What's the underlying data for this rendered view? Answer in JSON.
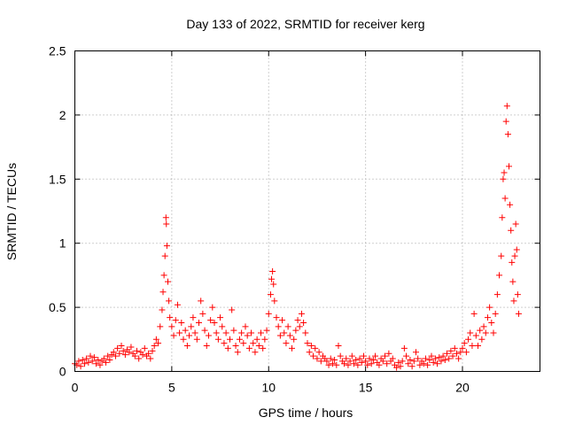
{
  "chart_data": {
    "type": "scatter",
    "title": "Day 133 of 2022, SRMTID for receiver kerg",
    "xlabel": "GPS time / hours",
    "ylabel": "SRMTID / TECUs",
    "xlim": [
      0,
      24
    ],
    "ylim": [
      0,
      2.5
    ],
    "x_ticks": [
      0,
      5,
      10,
      15,
      20
    ],
    "x_tick_labels": [
      "0",
      "5",
      "10",
      "15",
      "20"
    ],
    "y_ticks": [
      0,
      0.5,
      1,
      1.5,
      2,
      2.5
    ],
    "y_tick_labels": [
      "0",
      "0.5",
      "1",
      "1.5",
      "2",
      "2.5"
    ],
    "grid": true,
    "marker": "+",
    "series": [
      {
        "name": "SRMTID",
        "color": "#ff0000",
        "points": [
          [
            0.0,
            0.06
          ],
          [
            0.1,
            0.05
          ],
          [
            0.2,
            0.08
          ],
          [
            0.3,
            0.04
          ],
          [
            0.4,
            0.09
          ],
          [
            0.5,
            0.06
          ],
          [
            0.6,
            0.1
          ],
          [
            0.7,
            0.07
          ],
          [
            0.8,
            0.12
          ],
          [
            0.9,
            0.08
          ],
          [
            1.0,
            0.11
          ],
          [
            1.1,
            0.06
          ],
          [
            1.2,
            0.09
          ],
          [
            1.3,
            0.05
          ],
          [
            1.4,
            0.08
          ],
          [
            1.5,
            0.1
          ],
          [
            1.6,
            0.07
          ],
          [
            1.7,
            0.12
          ],
          [
            1.8,
            0.09
          ],
          [
            1.9,
            0.13
          ],
          [
            2.0,
            0.15
          ],
          [
            2.1,
            0.12
          ],
          [
            2.2,
            0.18
          ],
          [
            2.3,
            0.14
          ],
          [
            2.4,
            0.2
          ],
          [
            2.5,
            0.16
          ],
          [
            2.6,
            0.13
          ],
          [
            2.7,
            0.17
          ],
          [
            2.8,
            0.15
          ],
          [
            2.9,
            0.19
          ],
          [
            3.0,
            0.14
          ],
          [
            3.1,
            0.12
          ],
          [
            3.2,
            0.16
          ],
          [
            3.3,
            0.1
          ],
          [
            3.4,
            0.15
          ],
          [
            3.5,
            0.13
          ],
          [
            3.6,
            0.18
          ],
          [
            3.7,
            0.12
          ],
          [
            3.8,
            0.14
          ],
          [
            3.9,
            0.1
          ],
          [
            4.0,
            0.16
          ],
          [
            4.1,
            0.2
          ],
          [
            4.2,
            0.25
          ],
          [
            4.3,
            0.22
          ],
          [
            4.4,
            0.35
          ],
          [
            4.5,
            0.48
          ],
          [
            4.55,
            0.62
          ],
          [
            4.6,
            0.75
          ],
          [
            4.65,
            0.9
          ],
          [
            4.7,
            1.2
          ],
          [
            4.72,
            1.15
          ],
          [
            4.75,
            0.98
          ],
          [
            4.8,
            0.7
          ],
          [
            4.85,
            0.55
          ],
          [
            4.9,
            0.42
          ],
          [
            5.0,
            0.35
          ],
          [
            5.1,
            0.28
          ],
          [
            5.2,
            0.4
          ],
          [
            5.3,
            0.52
          ],
          [
            5.4,
            0.3
          ],
          [
            5.5,
            0.38
          ],
          [
            5.6,
            0.25
          ],
          [
            5.7,
            0.32
          ],
          [
            5.8,
            0.2
          ],
          [
            5.9,
            0.28
          ],
          [
            6.0,
            0.35
          ],
          [
            6.1,
            0.42
          ],
          [
            6.2,
            0.3
          ],
          [
            6.3,
            0.25
          ],
          [
            6.4,
            0.38
          ],
          [
            6.5,
            0.55
          ],
          [
            6.6,
            0.45
          ],
          [
            6.7,
            0.32
          ],
          [
            6.8,
            0.2
          ],
          [
            6.9,
            0.28
          ],
          [
            7.0,
            0.4
          ],
          [
            7.1,
            0.5
          ],
          [
            7.2,
            0.38
          ],
          [
            7.3,
            0.3
          ],
          [
            7.4,
            0.25
          ],
          [
            7.5,
            0.42
          ],
          [
            7.6,
            0.35
          ],
          [
            7.7,
            0.22
          ],
          [
            7.8,
            0.3
          ],
          [
            7.9,
            0.18
          ],
          [
            8.0,
            0.25
          ],
          [
            8.1,
            0.48
          ],
          [
            8.2,
            0.32
          ],
          [
            8.3,
            0.2
          ],
          [
            8.4,
            0.15
          ],
          [
            8.5,
            0.25
          ],
          [
            8.6,
            0.3
          ],
          [
            8.7,
            0.22
          ],
          [
            8.8,
            0.35
          ],
          [
            8.9,
            0.28
          ],
          [
            9.0,
            0.18
          ],
          [
            9.1,
            0.3
          ],
          [
            9.2,
            0.22
          ],
          [
            9.3,
            0.15
          ],
          [
            9.4,
            0.25
          ],
          [
            9.5,
            0.2
          ],
          [
            9.6,
            0.3
          ],
          [
            9.7,
            0.18
          ],
          [
            9.8,
            0.25
          ],
          [
            9.9,
            0.32
          ],
          [
            10.0,
            0.45
          ],
          [
            10.1,
            0.6
          ],
          [
            10.15,
            0.72
          ],
          [
            10.2,
            0.78
          ],
          [
            10.25,
            0.68
          ],
          [
            10.3,
            0.55
          ],
          [
            10.4,
            0.42
          ],
          [
            10.5,
            0.35
          ],
          [
            10.6,
            0.28
          ],
          [
            10.7,
            0.4
          ],
          [
            10.8,
            0.3
          ],
          [
            10.9,
            0.22
          ],
          [
            11.0,
            0.35
          ],
          [
            11.1,
            0.28
          ],
          [
            11.2,
            0.18
          ],
          [
            11.3,
            0.25
          ],
          [
            11.4,
            0.32
          ],
          [
            11.5,
            0.4
          ],
          [
            11.6,
            0.35
          ],
          [
            11.7,
            0.45
          ],
          [
            11.8,
            0.38
          ],
          [
            11.9,
            0.3
          ],
          [
            12.0,
            0.22
          ],
          [
            12.1,
            0.15
          ],
          [
            12.2,
            0.2
          ],
          [
            12.3,
            0.12
          ],
          [
            12.4,
            0.18
          ],
          [
            12.5,
            0.1
          ],
          [
            12.6,
            0.15
          ],
          [
            12.7,
            0.08
          ],
          [
            12.8,
            0.12
          ],
          [
            12.9,
            0.1
          ],
          [
            13.0,
            0.08
          ],
          [
            13.1,
            0.05
          ],
          [
            13.2,
            0.1
          ],
          [
            13.3,
            0.06
          ],
          [
            13.4,
            0.09
          ],
          [
            13.5,
            0.05
          ],
          [
            13.6,
            0.2
          ],
          [
            13.7,
            0.12
          ],
          [
            13.8,
            0.08
          ],
          [
            13.9,
            0.06
          ],
          [
            14.0,
            0.1
          ],
          [
            14.1,
            0.05
          ],
          [
            14.2,
            0.08
          ],
          [
            14.3,
            0.12
          ],
          [
            14.4,
            0.06
          ],
          [
            14.5,
            0.09
          ],
          [
            14.6,
            0.05
          ],
          [
            14.7,
            0.1
          ],
          [
            14.8,
            0.07
          ],
          [
            14.9,
            0.12
          ],
          [
            15.0,
            0.08
          ],
          [
            15.1,
            0.05
          ],
          [
            15.2,
            0.1
          ],
          [
            15.3,
            0.06
          ],
          [
            15.4,
            0.09
          ],
          [
            15.5,
            0.12
          ],
          [
            15.6,
            0.07
          ],
          [
            15.7,
            0.05
          ],
          [
            15.8,
            0.1
          ],
          [
            15.9,
            0.08
          ],
          [
            16.0,
            0.12
          ],
          [
            16.1,
            0.06
          ],
          [
            16.2,
            0.14
          ],
          [
            16.3,
            0.08
          ],
          [
            16.4,
            0.1
          ],
          [
            16.5,
            0.05
          ],
          [
            16.6,
            0.03
          ],
          [
            16.7,
            0.07
          ],
          [
            16.8,
            0.04
          ],
          [
            16.9,
            0.08
          ],
          [
            17.0,
            0.18
          ],
          [
            17.1,
            0.12
          ],
          [
            17.2,
            0.06
          ],
          [
            17.3,
            0.09
          ],
          [
            17.4,
            0.04
          ],
          [
            17.5,
            0.08
          ],
          [
            17.6,
            0.15
          ],
          [
            17.7,
            0.1
          ],
          [
            17.8,
            0.05
          ],
          [
            17.9,
            0.08
          ],
          [
            18.0,
            0.06
          ],
          [
            18.1,
            0.1
          ],
          [
            18.2,
            0.05
          ],
          [
            18.3,
            0.09
          ],
          [
            18.4,
            0.12
          ],
          [
            18.5,
            0.07
          ],
          [
            18.6,
            0.1
          ],
          [
            18.7,
            0.06
          ],
          [
            18.8,
            0.11
          ],
          [
            18.9,
            0.08
          ],
          [
            19.0,
            0.12
          ],
          [
            19.1,
            0.09
          ],
          [
            19.2,
            0.14
          ],
          [
            19.3,
            0.1
          ],
          [
            19.4,
            0.16
          ],
          [
            19.5,
            0.12
          ],
          [
            19.6,
            0.18
          ],
          [
            19.7,
            0.14
          ],
          [
            19.8,
            0.1
          ],
          [
            19.9,
            0.15
          ],
          [
            20.0,
            0.18
          ],
          [
            20.1,
            0.22
          ],
          [
            20.2,
            0.15
          ],
          [
            20.3,
            0.25
          ],
          [
            20.4,
            0.3
          ],
          [
            20.5,
            0.2
          ],
          [
            20.6,
            0.45
          ],
          [
            20.7,
            0.28
          ],
          [
            20.8,
            0.2
          ],
          [
            20.9,
            0.32
          ],
          [
            21.0,
            0.25
          ],
          [
            21.1,
            0.35
          ],
          [
            21.2,
            0.3
          ],
          [
            21.3,
            0.42
          ],
          [
            21.4,
            0.5
          ],
          [
            21.5,
            0.38
          ],
          [
            21.6,
            0.3
          ],
          [
            21.7,
            0.45
          ],
          [
            21.8,
            0.6
          ],
          [
            21.9,
            0.75
          ],
          [
            22.0,
            0.9
          ],
          [
            22.05,
            1.2
          ],
          [
            22.1,
            1.5
          ],
          [
            22.15,
            1.55
          ],
          [
            22.2,
            1.35
          ],
          [
            22.25,
            1.95
          ],
          [
            22.3,
            2.07
          ],
          [
            22.35,
            1.85
          ],
          [
            22.4,
            1.6
          ],
          [
            22.45,
            1.3
          ],
          [
            22.5,
            1.1
          ],
          [
            22.55,
            0.85
          ],
          [
            22.6,
            0.7
          ],
          [
            22.65,
            0.55
          ],
          [
            22.7,
            0.9
          ],
          [
            22.75,
            1.15
          ],
          [
            22.8,
            0.95
          ],
          [
            22.85,
            0.6
          ],
          [
            22.9,
            0.45
          ]
        ]
      }
    ]
  }
}
